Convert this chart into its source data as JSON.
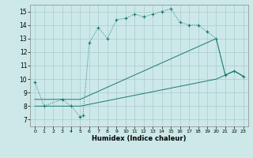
{
  "xlabel": "Humidex (Indice chaleur)",
  "bg_color": "#cce8e8",
  "line_color": "#1a7a6e",
  "grid_color": "#aacccc",
  "xlim": [
    -0.5,
    23.5
  ],
  "ylim": [
    6.5,
    15.5
  ],
  "xticks": [
    0,
    1,
    2,
    3,
    4,
    5,
    6,
    7,
    8,
    9,
    10,
    11,
    12,
    13,
    14,
    15,
    16,
    17,
    18,
    19,
    20,
    21,
    22,
    23
  ],
  "yticks": [
    7,
    8,
    9,
    10,
    11,
    12,
    13,
    14,
    15
  ],
  "line_dotted": {
    "x": [
      0,
      1,
      3,
      4,
      5,
      5.3,
      6,
      7,
      8,
      9,
      10,
      11,
      12,
      13,
      14,
      15,
      16,
      17,
      18,
      19,
      20,
      21,
      22,
      23
    ],
    "y": [
      9.8,
      8.0,
      8.5,
      8.0,
      7.2,
      7.3,
      12.7,
      13.8,
      13.0,
      14.4,
      14.5,
      14.8,
      14.6,
      14.8,
      15.0,
      15.2,
      14.2,
      14.0,
      14.0,
      13.5,
      13.0,
      10.3,
      10.6,
      10.2
    ]
  },
  "line_upper": {
    "x": [
      0,
      5,
      20,
      21,
      22,
      23
    ],
    "y": [
      8.5,
      8.5,
      13.0,
      10.3,
      10.6,
      10.2
    ]
  },
  "line_lower": {
    "x": [
      0,
      5,
      20,
      21,
      22,
      23
    ],
    "y": [
      8.0,
      8.0,
      10.0,
      10.3,
      10.6,
      10.2
    ]
  }
}
